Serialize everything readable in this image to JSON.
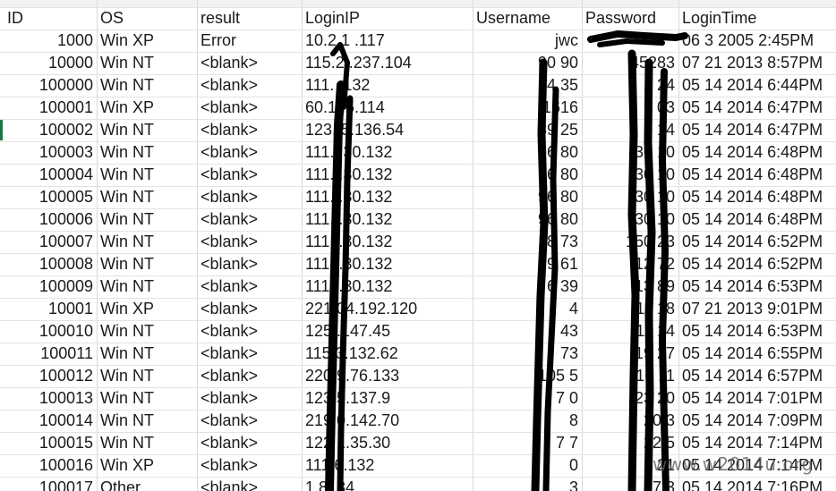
{
  "columns": [
    "ID",
    "OS",
    "result",
    "LoginIP",
    "Username",
    "Password",
    "LoginTime"
  ],
  "rows": [
    {
      "id": "1000",
      "os": "Win XP",
      "result": "Error",
      "ip": "10.2 1 .117",
      "user": "jwc",
      "pass": "",
      "time": "06  3 2005  2:45PM"
    },
    {
      "id": "10000",
      "os": "Win NT",
      "result": "<blank>",
      "ip": "115.2 .237.104",
      "user": "90 90",
      "pass": "45283",
      "time": "07 21 2013  8:57PM"
    },
    {
      "id": "100000",
      "os": "Win NT",
      "result": "<blank>",
      "ip": "111.   .132",
      "user": "94 35",
      "pass": "1  24",
      "time": "05 14 2014  6:44PM"
    },
    {
      "id": "100001",
      "os": "Win XP",
      "result": "<blank>",
      "ip": "60.1  .5.114",
      "user": "1616",
      "pass": "2   03",
      "time": "05 14 2014  6:47PM"
    },
    {
      "id": "100002",
      "os": "Win NT",
      "result": "<blank>",
      "ip": "123.  5.136.54",
      "user": "89 25",
      "pass": "2   14",
      "time": "05 14 2014  6:47PM"
    },
    {
      "id": "100003",
      "os": "Win NT",
      "result": "<blank>",
      "ip": "111.  .30.132",
      "user": "96 80",
      "pass": "30  10",
      "time": "05 14 2014  6:48PM"
    },
    {
      "id": "100004",
      "os": "Win NT",
      "result": "<blank>",
      "ip": "111.  .30.132",
      "user": "96 80",
      "pass": "30  10",
      "time": "05 14 2014  6:48PM"
    },
    {
      "id": "100005",
      "os": "Win NT",
      "result": "<blank>",
      "ip": "111.  .30.132",
      "user": "96 80",
      "pass": "30  10",
      "time": "05 14 2014  6:48PM"
    },
    {
      "id": "100006",
      "os": "Win NT",
      "result": "<blank>",
      "ip": "111.  .30.132",
      "user": "96 80",
      "pass": "30  10",
      "time": "05 14 2014  6:48PM"
    },
    {
      "id": "100007",
      "os": "Win NT",
      "result": "<blank>",
      "ip": "111.  .30.132",
      "user": "8  73",
      "pass": "150 23",
      "time": "05 14 2014  6:52PM"
    },
    {
      "id": "100008",
      "os": "Win NT",
      "result": "<blank>",
      "ip": "111.  .30.132",
      "user": "9  61",
      "pass": "12  72",
      "time": "05 14 2014  6:52PM"
    },
    {
      "id": "100009",
      "os": "Win NT",
      "result": "<blank>",
      "ip": "111.  .30.132",
      "user": "6  39",
      "pass": "13  89",
      "time": "05 14 2014  6:53PM"
    },
    {
      "id": "10001",
      "os": "Win XP",
      "result": "<blank>",
      "ip": "221 04.192.120",
      "user": "  4",
      "pass": "11  18",
      "time": "07 21 2013  9:01PM"
    },
    {
      "id": "100010",
      "os": "Win NT",
      "result": "<blank>",
      "ip": "125  .147.45",
      "user": "  43",
      "pass": "11  14",
      "time": "05 14 2014  6:53PM"
    },
    {
      "id": "100011",
      "os": "Win NT",
      "result": "<blank>",
      "ip": "115 3.132.62",
      "user": "  73",
      "pass": "19  27",
      "time": "05 14 2014  6:55PM"
    },
    {
      "id": "100012",
      "os": "Win NT",
      "result": "<blank>",
      "ip": "220 9.76.133",
      "user": "105 5",
      "pass": "16  11",
      "time": "05 14 2014  6:57PM"
    },
    {
      "id": "100013",
      "os": "Win NT",
      "result": "<blank>",
      "ip": "123 5.137.9",
      "user": "7  0",
      "pass": "23  20",
      "time": "05 14 2014  7:01PM"
    },
    {
      "id": "100014",
      "os": "Win NT",
      "result": "<blank>",
      "ip": "219 0.142.70",
      "user": "  8",
      "pass": "20  3",
      "time": "05 14 2014  7:09PM"
    },
    {
      "id": "100015",
      "os": "Win NT",
      "result": "<blank>",
      "ip": "122 1.35.30",
      "user": "7  7",
      "pass": "22  5",
      "time": "05 14 2014  7:14PM"
    },
    {
      "id": "100016",
      "os": "Win XP",
      "result": "<blank>",
      "ip": "111 6.132",
      "user": "  0",
      "pass": "21  ",
      "time": "05 14 2014  7:14PM"
    },
    {
      "id": "100017",
      "os": "Other",
      "result": "<blank>",
      "ip": "1.8  .84",
      "user": "  3",
      "pass": "17  3",
      "time": "05 14 2014  7:16PM"
    }
  ],
  "watermark": "www.w2014u.org",
  "colors": {
    "grid": "#d8d8d8",
    "redaction": "#000000",
    "selection": "#217346"
  }
}
